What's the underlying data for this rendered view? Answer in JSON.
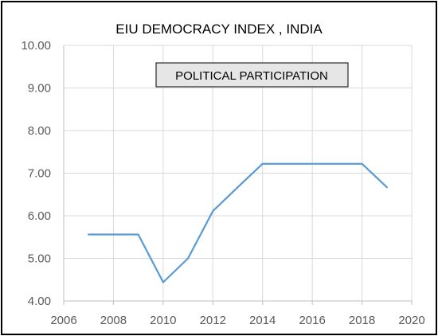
{
  "chart_data": {
    "type": "line",
    "title": "EIU  DEMOCRACY  INDEX , INDIA",
    "annotation": "POLITICAL PARTICIPATION",
    "xlabel": "",
    "ylabel": "",
    "xlim": [
      2006,
      2020
    ],
    "ylim": [
      4.0,
      10.0
    ],
    "x_ticks": [
      2006,
      2008,
      2010,
      2012,
      2014,
      2016,
      2018,
      2020
    ],
    "y_ticks": [
      "4.00",
      "5.00",
      "6.00",
      "7.00",
      "8.00",
      "9.00",
      "10.00"
    ],
    "grid": true,
    "legend": "none",
    "series": [
      {
        "color": "#5b9bd5",
        "points": [
          {
            "x": 2007,
            "y": 5.56
          },
          {
            "x": 2008,
            "y": 5.56
          },
          {
            "x": 2009,
            "y": 5.56
          },
          {
            "x": 2010,
            "y": 4.44
          },
          {
            "x": 2011,
            "y": 5.0
          },
          {
            "x": 2012,
            "y": 6.11
          },
          {
            "x": 2013,
            "y": 6.67
          },
          {
            "x": 2014,
            "y": 7.22
          },
          {
            "x": 2015,
            "y": 7.22
          },
          {
            "x": 2016,
            "y": 7.22
          },
          {
            "x": 2017,
            "y": 7.22
          },
          {
            "x": 2018,
            "y": 7.22
          },
          {
            "x": 2019,
            "y": 6.67
          }
        ]
      }
    ]
  }
}
